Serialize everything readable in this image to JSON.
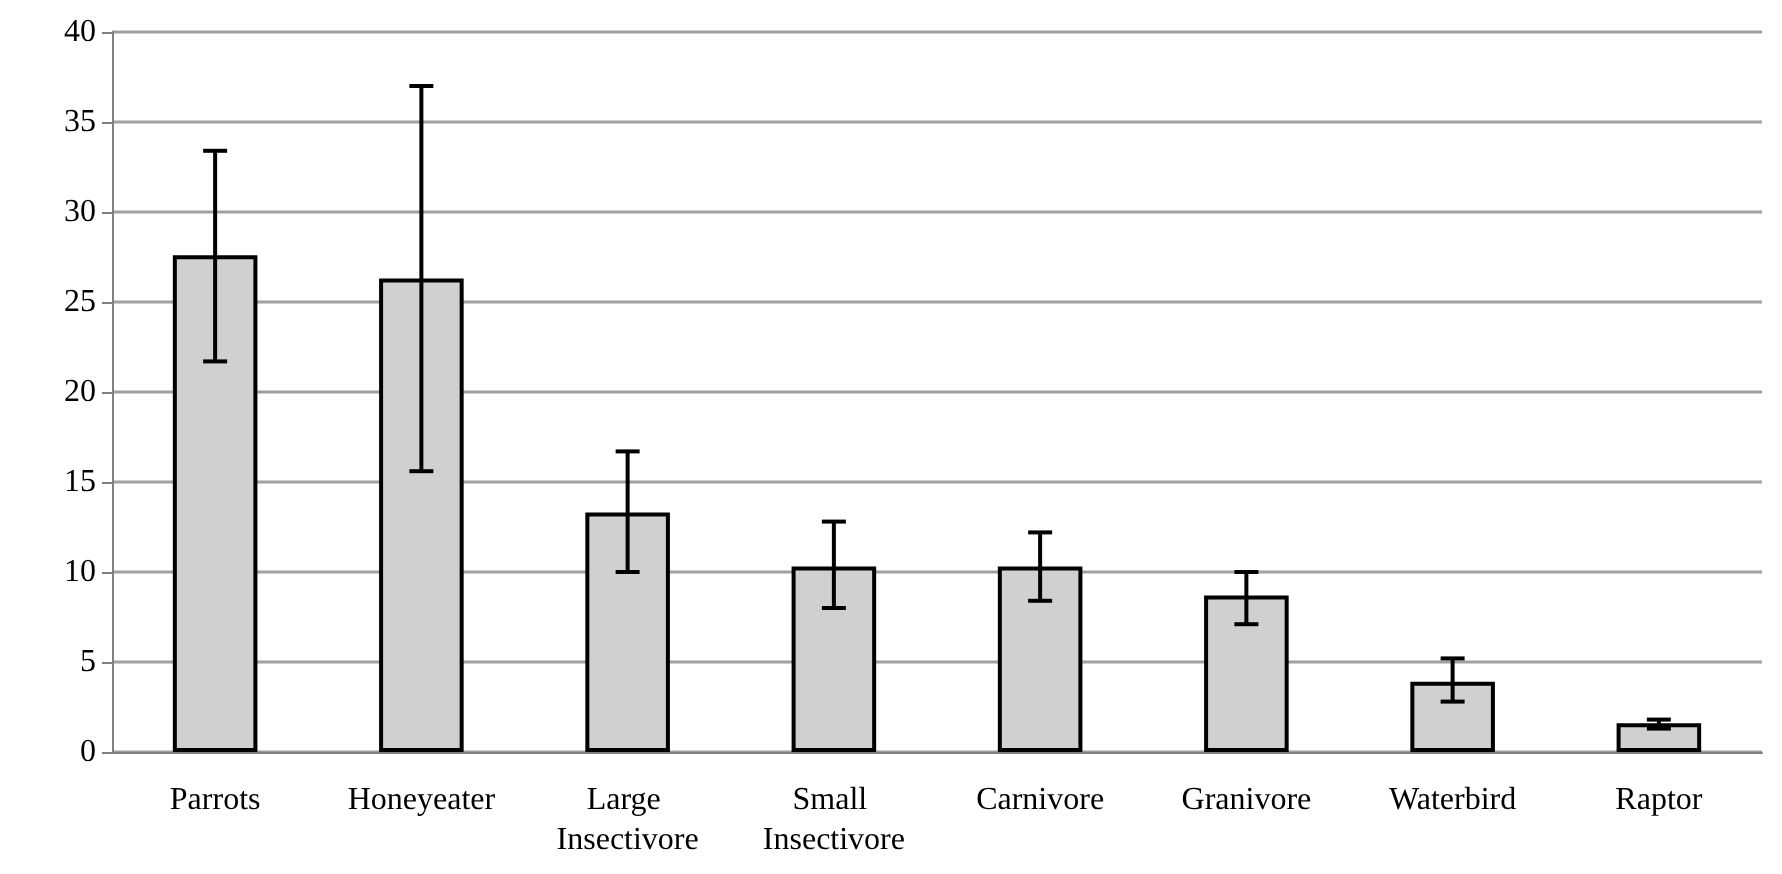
{
  "chart_data": {
    "type": "bar",
    "categories": [
      "Parrots",
      "Honeyeater",
      "Large Insectivore",
      "Small Insectivore",
      "Carnivore",
      "Granivore",
      "Waterbird",
      "Raptor"
    ],
    "values": [
      27.6,
      26.3,
      13.3,
      10.3,
      10.3,
      8.7,
      3.9,
      1.6
    ],
    "errors": [
      [
        21.7,
        33.4
      ],
      [
        15.6,
        37.0
      ],
      [
        10.0,
        16.7
      ],
      [
        8.0,
        12.8
      ],
      [
        8.4,
        12.2
      ],
      [
        7.1,
        10.0
      ],
      [
        2.8,
        5.2
      ],
      [
        1.3,
        1.8
      ]
    ],
    "color": "#d0d0d0",
    "ylim": [
      0,
      40
    ],
    "yticks": [
      0,
      5,
      10,
      15,
      20,
      25,
      30,
      35,
      40
    ],
    "grid": "y"
  }
}
